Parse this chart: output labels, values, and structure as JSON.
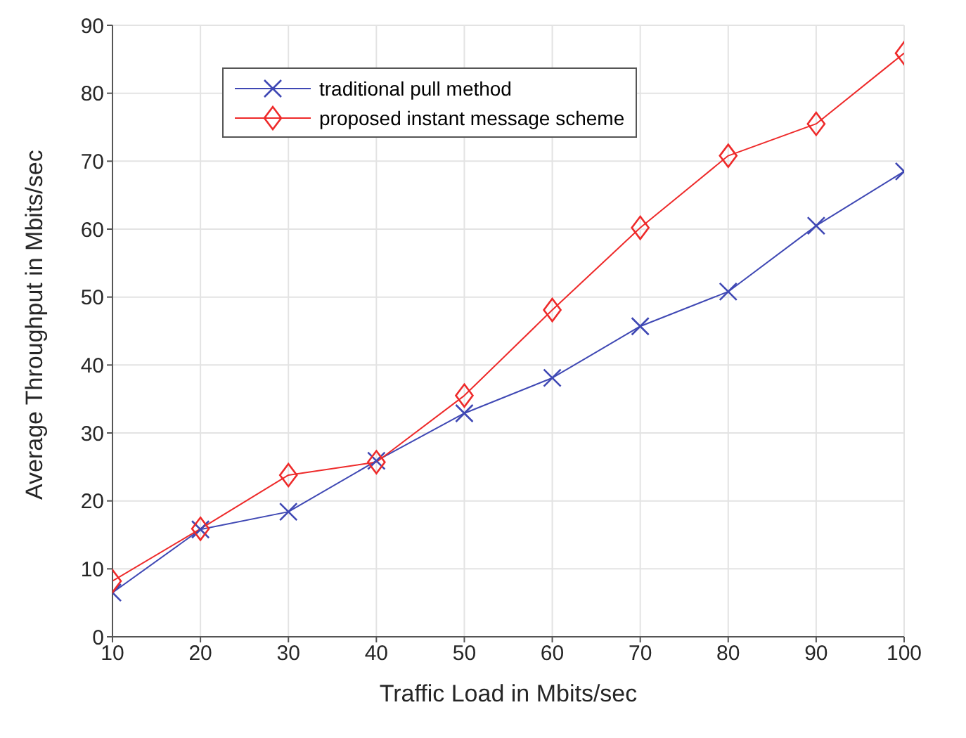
{
  "chart_data": {
    "type": "line",
    "xlabel": "Traffic Load in Mbits/sec",
    "ylabel": "Average Throughput in Mbits/sec",
    "x": [
      10,
      20,
      30,
      40,
      50,
      60,
      70,
      80,
      90,
      100
    ],
    "series": [
      {
        "name": "traditional pull method",
        "color": "#3f48b4",
        "marker": "cross",
        "values": [
          6.5,
          15.8,
          18.4,
          25.9,
          32.9,
          38.1,
          45.7,
          50.8,
          60.5,
          68.5
        ]
      },
      {
        "name": "proposed instant message scheme",
        "color": "#ee2a2a",
        "marker": "diamond",
        "values": [
          8.2,
          15.9,
          23.8,
          25.7,
          35.5,
          48.1,
          60.2,
          70.8,
          75.5,
          85.9
        ]
      }
    ],
    "xlim": [
      10,
      100
    ],
    "xticks": [
      10,
      20,
      30,
      40,
      50,
      60,
      70,
      80,
      90,
      100
    ],
    "ylim": [
      0,
      90
    ],
    "yticks": [
      0,
      10,
      20,
      30,
      40,
      50,
      60,
      70,
      80,
      90
    ],
    "grid": true,
    "legend": "top left",
    "line_style": "solid"
  }
}
